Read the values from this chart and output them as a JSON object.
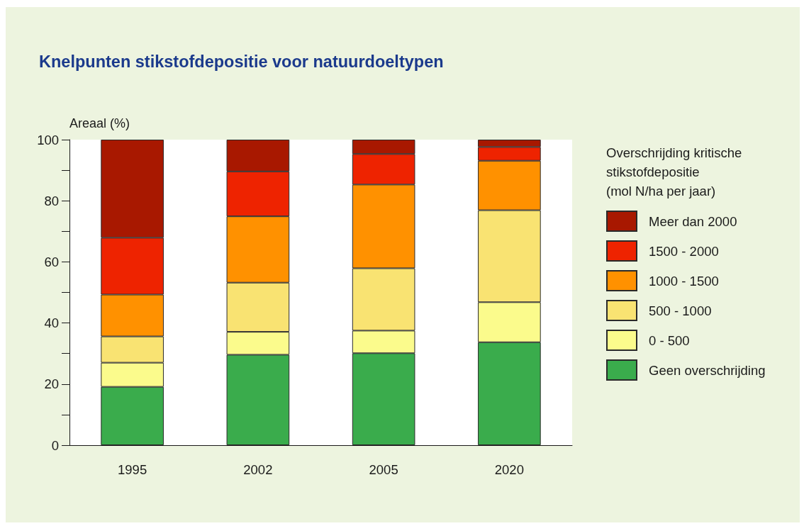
{
  "chart_data": {
    "type": "bar",
    "title": "Knelpunten stikstofdepositie voor natuurdoeltypen",
    "ylabel": "Areaal (%)",
    "legend_title": "Overschrijding kritische stikstofdepositie (mol N/ha per jaar)",
    "categories": [
      "1995",
      "2002",
      "2005",
      "2020"
    ],
    "stacked": true,
    "series": [
      {
        "name": "Geen overschrijding",
        "color": "#3aac4c",
        "values": [
          19.1,
          29.6,
          30.1,
          33.7
        ]
      },
      {
        "name": "0 - 500",
        "color": "#fbfb8c",
        "values": [
          7.9,
          7.5,
          7.4,
          13.1
        ]
      },
      {
        "name": "500 - 1000",
        "color": "#f9e372",
        "values": [
          8.6,
          16.1,
          20.4,
          30.1
        ]
      },
      {
        "name": "1000 - 1500",
        "color": "#ff9100",
        "values": [
          13.7,
          21.7,
          27.4,
          16.2
        ]
      },
      {
        "name": "1500 - 2000",
        "color": "#ee2300",
        "values": [
          18.6,
          14.7,
          10.0,
          4.5
        ]
      },
      {
        "name": "Meer dan 2000",
        "color": "#a81800",
        "values": [
          32.1,
          10.4,
          4.7,
          2.4
        ]
      }
    ],
    "ylim": [
      0,
      100
    ],
    "yticks": [
      0,
      {
        "value": 10,
        "label": null
      },
      20,
      {
        "value": 30,
        "label": null
      },
      40,
      {
        "value": 50,
        "label": null
      },
      60,
      {
        "value": 70,
        "label": null
      },
      80,
      {
        "value": 90,
        "label": null
      },
      100
    ],
    "legend": "right"
  }
}
